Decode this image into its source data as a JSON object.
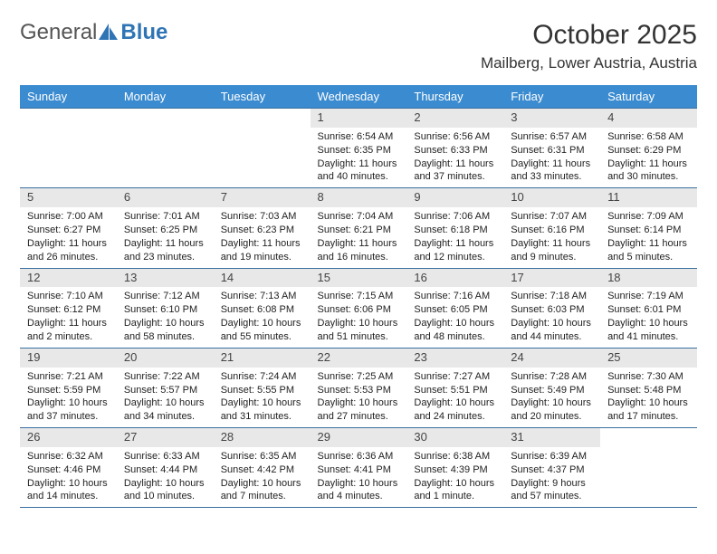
{
  "logo": {
    "text1": "General",
    "text2": "Blue"
  },
  "title": "October 2025",
  "location": "Mailberg, Lower Austria, Austria",
  "colors": {
    "header_bg": "#3b8bd0",
    "header_text": "#ffffff",
    "daynum_bg": "#e8e8e8",
    "border": "#3b6fa0",
    "logo_gray": "#555555",
    "logo_blue": "#2f75b5"
  },
  "day_headers": [
    "Sunday",
    "Monday",
    "Tuesday",
    "Wednesday",
    "Thursday",
    "Friday",
    "Saturday"
  ],
  "weeks": [
    [
      {
        "n": "",
        "lines": []
      },
      {
        "n": "",
        "lines": []
      },
      {
        "n": "",
        "lines": []
      },
      {
        "n": "1",
        "lines": [
          "Sunrise: 6:54 AM",
          "Sunset: 6:35 PM",
          "Daylight: 11 hours and 40 minutes."
        ]
      },
      {
        "n": "2",
        "lines": [
          "Sunrise: 6:56 AM",
          "Sunset: 6:33 PM",
          "Daylight: 11 hours and 37 minutes."
        ]
      },
      {
        "n": "3",
        "lines": [
          "Sunrise: 6:57 AM",
          "Sunset: 6:31 PM",
          "Daylight: 11 hours and 33 minutes."
        ]
      },
      {
        "n": "4",
        "lines": [
          "Sunrise: 6:58 AM",
          "Sunset: 6:29 PM",
          "Daylight: 11 hours and 30 minutes."
        ]
      }
    ],
    [
      {
        "n": "5",
        "lines": [
          "Sunrise: 7:00 AM",
          "Sunset: 6:27 PM",
          "Daylight: 11 hours and 26 minutes."
        ]
      },
      {
        "n": "6",
        "lines": [
          "Sunrise: 7:01 AM",
          "Sunset: 6:25 PM",
          "Daylight: 11 hours and 23 minutes."
        ]
      },
      {
        "n": "7",
        "lines": [
          "Sunrise: 7:03 AM",
          "Sunset: 6:23 PM",
          "Daylight: 11 hours and 19 minutes."
        ]
      },
      {
        "n": "8",
        "lines": [
          "Sunrise: 7:04 AM",
          "Sunset: 6:21 PM",
          "Daylight: 11 hours and 16 minutes."
        ]
      },
      {
        "n": "9",
        "lines": [
          "Sunrise: 7:06 AM",
          "Sunset: 6:18 PM",
          "Daylight: 11 hours and 12 minutes."
        ]
      },
      {
        "n": "10",
        "lines": [
          "Sunrise: 7:07 AM",
          "Sunset: 6:16 PM",
          "Daylight: 11 hours and 9 minutes."
        ]
      },
      {
        "n": "11",
        "lines": [
          "Sunrise: 7:09 AM",
          "Sunset: 6:14 PM",
          "Daylight: 11 hours and 5 minutes."
        ]
      }
    ],
    [
      {
        "n": "12",
        "lines": [
          "Sunrise: 7:10 AM",
          "Sunset: 6:12 PM",
          "Daylight: 11 hours and 2 minutes."
        ]
      },
      {
        "n": "13",
        "lines": [
          "Sunrise: 7:12 AM",
          "Sunset: 6:10 PM",
          "Daylight: 10 hours and 58 minutes."
        ]
      },
      {
        "n": "14",
        "lines": [
          "Sunrise: 7:13 AM",
          "Sunset: 6:08 PM",
          "Daylight: 10 hours and 55 minutes."
        ]
      },
      {
        "n": "15",
        "lines": [
          "Sunrise: 7:15 AM",
          "Sunset: 6:06 PM",
          "Daylight: 10 hours and 51 minutes."
        ]
      },
      {
        "n": "16",
        "lines": [
          "Sunrise: 7:16 AM",
          "Sunset: 6:05 PM",
          "Daylight: 10 hours and 48 minutes."
        ]
      },
      {
        "n": "17",
        "lines": [
          "Sunrise: 7:18 AM",
          "Sunset: 6:03 PM",
          "Daylight: 10 hours and 44 minutes."
        ]
      },
      {
        "n": "18",
        "lines": [
          "Sunrise: 7:19 AM",
          "Sunset: 6:01 PM",
          "Daylight: 10 hours and 41 minutes."
        ]
      }
    ],
    [
      {
        "n": "19",
        "lines": [
          "Sunrise: 7:21 AM",
          "Sunset: 5:59 PM",
          "Daylight: 10 hours and 37 minutes."
        ]
      },
      {
        "n": "20",
        "lines": [
          "Sunrise: 7:22 AM",
          "Sunset: 5:57 PM",
          "Daylight: 10 hours and 34 minutes."
        ]
      },
      {
        "n": "21",
        "lines": [
          "Sunrise: 7:24 AM",
          "Sunset: 5:55 PM",
          "Daylight: 10 hours and 31 minutes."
        ]
      },
      {
        "n": "22",
        "lines": [
          "Sunrise: 7:25 AM",
          "Sunset: 5:53 PM",
          "Daylight: 10 hours and 27 minutes."
        ]
      },
      {
        "n": "23",
        "lines": [
          "Sunrise: 7:27 AM",
          "Sunset: 5:51 PM",
          "Daylight: 10 hours and 24 minutes."
        ]
      },
      {
        "n": "24",
        "lines": [
          "Sunrise: 7:28 AM",
          "Sunset: 5:49 PM",
          "Daylight: 10 hours and 20 minutes."
        ]
      },
      {
        "n": "25",
        "lines": [
          "Sunrise: 7:30 AM",
          "Sunset: 5:48 PM",
          "Daylight: 10 hours and 17 minutes."
        ]
      }
    ],
    [
      {
        "n": "26",
        "lines": [
          "Sunrise: 6:32 AM",
          "Sunset: 4:46 PM",
          "Daylight: 10 hours and 14 minutes."
        ]
      },
      {
        "n": "27",
        "lines": [
          "Sunrise: 6:33 AM",
          "Sunset: 4:44 PM",
          "Daylight: 10 hours and 10 minutes."
        ]
      },
      {
        "n": "28",
        "lines": [
          "Sunrise: 6:35 AM",
          "Sunset: 4:42 PM",
          "Daylight: 10 hours and 7 minutes."
        ]
      },
      {
        "n": "29",
        "lines": [
          "Sunrise: 6:36 AM",
          "Sunset: 4:41 PM",
          "Daylight: 10 hours and 4 minutes."
        ]
      },
      {
        "n": "30",
        "lines": [
          "Sunrise: 6:38 AM",
          "Sunset: 4:39 PM",
          "Daylight: 10 hours and 1 minute."
        ]
      },
      {
        "n": "31",
        "lines": [
          "Sunrise: 6:39 AM",
          "Sunset: 4:37 PM",
          "Daylight: 9 hours and 57 minutes."
        ]
      },
      {
        "n": "",
        "lines": []
      }
    ]
  ]
}
